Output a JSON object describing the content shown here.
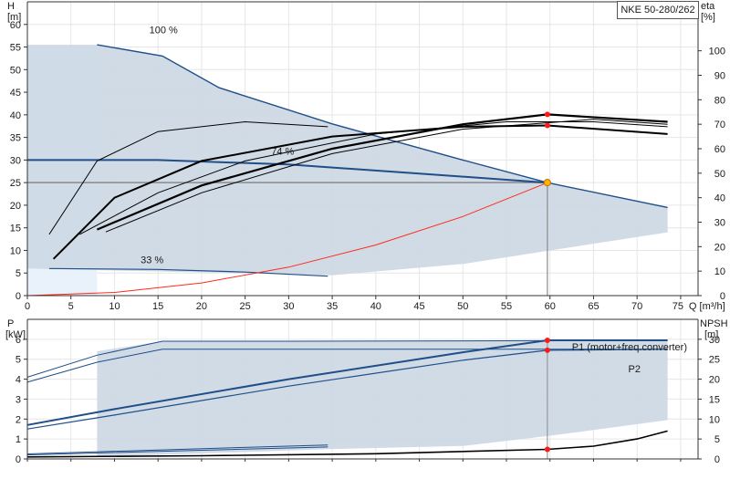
{
  "model": "NKE 50-280/262",
  "chart_data": [
    {
      "type": "line",
      "name": "performance",
      "left_axis": {
        "label": "H",
        "unit": "[m]",
        "range": [
          0,
          65
        ],
        "ticks": [
          0,
          5,
          10,
          15,
          20,
          25,
          30,
          35,
          40,
          45,
          50,
          55,
          60
        ]
      },
      "right_axis": {
        "label": "eta",
        "unit": "[%]",
        "range": [
          0,
          120
        ],
        "ticks": [
          0,
          10,
          20,
          30,
          40,
          50,
          60,
          70,
          80,
          90,
          100
        ]
      },
      "x_axis": {
        "label": "Q [m³/h]",
        "range": [
          0,
          77
        ],
        "ticks": [
          0,
          5,
          10,
          15,
          20,
          25,
          30,
          35,
          40,
          45,
          50,
          55,
          60,
          65,
          70,
          75
        ]
      },
      "annotations": [
        "100 %",
        "74 %",
        "33 %"
      ],
      "operating_point": {
        "q": 59.7,
        "h": 25.0
      },
      "red_markers_eta": [
        {
          "q": 59.7,
          "eta": 74
        },
        {
          "q": 59.7,
          "eta": 69.5
        }
      ],
      "envelope_head": [
        [
          0,
          55.5
        ],
        [
          8,
          55.5
        ],
        [
          15.5,
          53
        ],
        [
          22,
          46
        ],
        [
          35,
          38
        ],
        [
          59.7,
          25
        ],
        [
          73.5,
          19.5
        ],
        [
          73.5,
          14
        ],
        [
          50,
          7
        ],
        [
          35,
          4.5
        ],
        [
          0,
          6
        ]
      ],
      "series": [
        {
          "key": "head_100",
          "x": [
            8,
            15.5,
            22,
            35,
            50,
            59.7,
            73.5
          ],
          "y": [
            55.5,
            53,
            46,
            38,
            30,
            25,
            19.5
          ]
        },
        {
          "key": "head_74",
          "x": [
            0,
            15,
            30,
            45,
            59.7
          ],
          "y": [
            30,
            30,
            29,
            27,
            25
          ]
        },
        {
          "key": "head_33",
          "x": [
            2.5,
            15,
            25,
            34.5
          ],
          "y": [
            6,
            5.8,
            5.2,
            4.3
          ]
        },
        {
          "key": "system_curve",
          "x": [
            0,
            10,
            20,
            30,
            40,
            50,
            59.7
          ],
          "y": [
            0,
            0.7,
            2.8,
            6.3,
            11.2,
            17.5,
            25
          ]
        },
        {
          "key": "eta_1",
          "x": [
            3,
            10,
            20,
            35,
            50,
            59.7,
            73.5
          ],
          "y": [
            15,
            40,
            55,
            65,
            69,
            69.5,
            66
          ]
        },
        {
          "key": "eta_2",
          "x": [
            6,
            15,
            25,
            40,
            55,
            65,
            73.5
          ],
          "y": [
            25,
            42,
            55,
            66,
            71,
            71,
            69
          ]
        },
        {
          "key": "eta_3",
          "x": [
            8,
            20,
            35,
            50,
            59.7,
            73.5
          ],
          "y": [
            27,
            45,
            60,
            70,
            74,
            71
          ]
        },
        {
          "key": "eta_4",
          "x": [
            9,
            20,
            35,
            50,
            65,
            73.5
          ],
          "y": [
            26,
            42,
            58,
            68,
            72,
            70
          ]
        },
        {
          "key": "eta_5",
          "x": [
            2.5,
            8,
            15,
            25,
            34.5
          ],
          "y": [
            25,
            55,
            67,
            71,
            69
          ]
        }
      ]
    },
    {
      "type": "line",
      "name": "power",
      "left_axis": {
        "label": "P",
        "unit": "[kW]",
        "range": [
          0,
          7
        ],
        "ticks": [
          0,
          1,
          2,
          3,
          4,
          5,
          6
        ]
      },
      "right_axis": {
        "label": "NPSH",
        "unit": "[m]",
        "range": [
          0,
          35
        ],
        "ticks": [
          0,
          5,
          10,
          15,
          20,
          25,
          30
        ]
      },
      "legend": [
        "P1 (motor+freq.converter)",
        "P2"
      ],
      "red_markers": [
        {
          "q": 59.7,
          "p": 5.95
        },
        {
          "q": 59.7,
          "p": 5.45
        },
        {
          "q": 59.7,
          "npsh": 2.4
        }
      ],
      "envelope_power": [
        [
          8,
          5.4
        ],
        [
          15.5,
          5.9
        ],
        [
          73.5,
          5.9
        ],
        [
          73.5,
          1.95
        ],
        [
          65,
          1.45
        ],
        [
          59.7,
          1.15
        ],
        [
          50,
          0.65
        ],
        [
          35,
          0.5
        ],
        [
          8,
          0.1
        ]
      ],
      "series": [
        {
          "key": "p1_max",
          "x": [
            0,
            8,
            15.5,
            30,
            50,
            73.5
          ],
          "y": [
            4.1,
            5.2,
            5.9,
            5.9,
            5.92,
            5.95
          ]
        },
        {
          "key": "p2_max",
          "x": [
            0,
            8,
            15.5,
            30,
            50,
            73.5
          ],
          "y": [
            3.85,
            4.85,
            5.5,
            5.5,
            5.5,
            5.5
          ]
        },
        {
          "key": "p1_74",
          "x": [
            0,
            10,
            30,
            50,
            59.7,
            73.5
          ],
          "y": [
            1.7,
            2.5,
            4.0,
            5.35,
            5.95,
            5.95
          ]
        },
        {
          "key": "p2_74",
          "x": [
            0,
            10,
            30,
            50,
            59.7,
            73.5
          ],
          "y": [
            1.5,
            2.2,
            3.65,
            4.95,
            5.45,
            5.5
          ]
        },
        {
          "key": "p1_33",
          "x": [
            0,
            15,
            34.5
          ],
          "y": [
            0.25,
            0.45,
            0.7
          ]
        },
        {
          "key": "p2_33",
          "x": [
            0,
            15,
            34.5
          ],
          "y": [
            0.2,
            0.38,
            0.6
          ]
        },
        {
          "key": "npsh",
          "x": [
            0,
            20,
            40,
            59.7,
            65,
            70,
            73.5
          ],
          "y": [
            0.5,
            0.8,
            1.3,
            2.4,
            3.2,
            5.0,
            7.0
          ]
        }
      ]
    }
  ]
}
